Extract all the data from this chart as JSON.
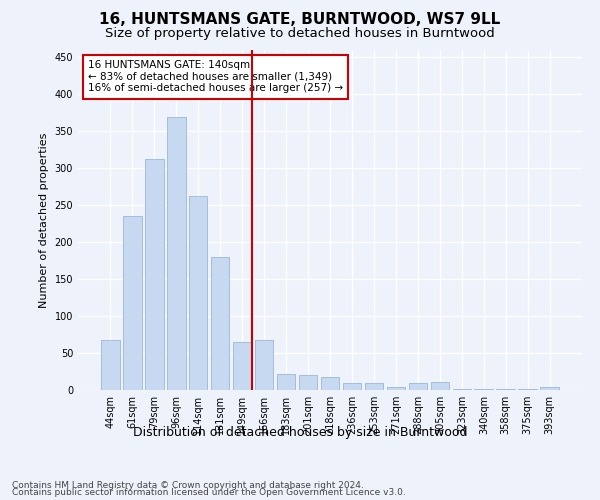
{
  "title": "16, HUNTSMANS GATE, BURNTWOOD, WS7 9LL",
  "subtitle": "Size of property relative to detached houses in Burntwood",
  "xlabel": "Distribution of detached houses by size in Burntwood",
  "ylabel": "Number of detached properties",
  "categories": [
    "44sqm",
    "61sqm",
    "79sqm",
    "96sqm",
    "114sqm",
    "131sqm",
    "149sqm",
    "166sqm",
    "183sqm",
    "201sqm",
    "218sqm",
    "236sqm",
    "253sqm",
    "271sqm",
    "288sqm",
    "305sqm",
    "323sqm",
    "340sqm",
    "358sqm",
    "375sqm",
    "393sqm"
  ],
  "values": [
    68,
    235,
    312,
    370,
    263,
    180,
    65,
    68,
    22,
    20,
    18,
    10,
    9,
    4,
    10,
    11,
    2,
    1,
    1,
    1,
    4
  ],
  "bar_color": "#c6d9f1",
  "bar_edge_color": "#9ab7d8",
  "vline_color": "#cc0000",
  "vline_pos": 6.45,
  "annotation_text": "16 HUNTSMANS GATE: 140sqm\n← 83% of detached houses are smaller (1,349)\n16% of semi-detached houses are larger (257) →",
  "annotation_box_color": "#ffffff",
  "annotation_box_edge_color": "#cc0000",
  "ylim": [
    0,
    460
  ],
  "yticks": [
    0,
    50,
    100,
    150,
    200,
    250,
    300,
    350,
    400,
    450
  ],
  "background_color": "#eef2fb",
  "grid_color": "#ffffff",
  "footer_line1": "Contains HM Land Registry data © Crown copyright and database right 2024.",
  "footer_line2": "Contains public sector information licensed under the Open Government Licence v3.0.",
  "title_fontsize": 11,
  "subtitle_fontsize": 9.5,
  "xlabel_fontsize": 9,
  "ylabel_fontsize": 8,
  "tick_fontsize": 7,
  "footer_fontsize": 6.5,
  "annotation_fontsize": 7.5
}
